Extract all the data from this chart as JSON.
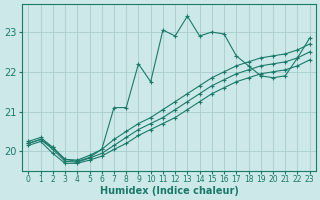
{
  "xlabel": "Humidex (Indice chaleur)",
  "ylabel": "",
  "bg_color": "#cce8e8",
  "grid_color": "#aacccc",
  "line_color": "#1a7a6a",
  "xlim": [
    -0.5,
    23.5
  ],
  "ylim": [
    19.5,
    23.7
  ],
  "yticks": [
    20,
    21,
    22,
    23
  ],
  "xticks": [
    0,
    1,
    2,
    3,
    4,
    5,
    6,
    7,
    8,
    9,
    10,
    11,
    12,
    13,
    14,
    15,
    16,
    17,
    18,
    19,
    20,
    21,
    22,
    23
  ],
  "lines": [
    {
      "x": [
        0,
        1,
        2,
        3,
        4,
        5,
        6,
        7,
        8,
        9,
        10,
        11,
        12,
        13,
        14,
        15,
        16,
        17,
        18,
        19,
        20,
        21,
        22,
        23
      ],
      "y": [
        20.2,
        20.3,
        20.1,
        19.8,
        19.75,
        19.85,
        20.05,
        21.1,
        21.1,
        22.2,
        21.75,
        23.05,
        22.9,
        23.4,
        22.9,
        23.0,
        22.95,
        22.4,
        22.15,
        21.9,
        21.85,
        21.9,
        22.35,
        22.85
      ]
    },
    {
      "x": [
        0,
        1,
        2,
        3,
        4,
        5,
        6,
        7,
        8,
        9,
        10,
        11,
        12,
        13,
        14,
        15,
        16,
        17,
        18,
        19,
        20,
        21,
        22,
        23
      ],
      "y": [
        20.15,
        20.25,
        19.95,
        19.7,
        19.7,
        19.78,
        19.88,
        20.05,
        20.2,
        20.4,
        20.55,
        20.7,
        20.85,
        21.05,
        21.25,
        21.45,
        21.6,
        21.75,
        21.85,
        21.95,
        22.0,
        22.05,
        22.15,
        22.3
      ]
    },
    {
      "x": [
        0,
        1,
        2,
        3,
        4,
        5,
        6,
        7,
        8,
        9,
        10,
        11,
        12,
        13,
        14,
        15,
        16,
        17,
        18,
        19,
        20,
        21,
        22,
        23
      ],
      "y": [
        20.2,
        20.3,
        20.05,
        19.75,
        19.73,
        19.83,
        19.95,
        20.15,
        20.35,
        20.55,
        20.7,
        20.85,
        21.05,
        21.25,
        21.45,
        21.65,
        21.8,
        21.95,
        22.05,
        22.15,
        22.2,
        22.25,
        22.35,
        22.5
      ]
    },
    {
      "x": [
        0,
        1,
        2,
        3,
        4,
        5,
        6,
        7,
        8,
        9,
        10,
        11,
        12,
        13,
        14,
        15,
        16,
        17,
        18,
        19,
        20,
        21,
        22,
        23
      ],
      "y": [
        20.25,
        20.35,
        20.1,
        19.8,
        19.78,
        19.9,
        20.05,
        20.3,
        20.5,
        20.7,
        20.85,
        21.05,
        21.25,
        21.45,
        21.65,
        21.85,
        22.0,
        22.15,
        22.25,
        22.35,
        22.4,
        22.45,
        22.55,
        22.7
      ]
    }
  ]
}
